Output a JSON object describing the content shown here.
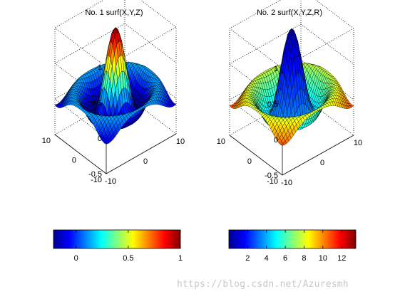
{
  "chart_data": [
    {
      "type": "surface",
      "title": "No. 1 surf(X,Y,Z)",
      "function": "Z = sin(R)/R, R = sqrt(X^2+Y^2)",
      "x_ticks": [
        "-10",
        "0",
        "10"
      ],
      "y_ticks": [
        "-10",
        "0",
        "10"
      ],
      "z_ticks": [
        "-0.5",
        "0",
        "0.5",
        "1"
      ],
      "x_range": [
        -8,
        8
      ],
      "y_range": [
        -8,
        8
      ],
      "zlim": [
        -0.5,
        1
      ],
      "color_by": "Z",
      "colormap": "jet",
      "colorbar": {
        "orientation": "horizontal",
        "ticks": [
          "0",
          "0.5",
          "1"
        ],
        "range": [
          -0.217,
          1
        ]
      }
    },
    {
      "type": "surface",
      "title": "No. 2 surf(X,Y,Z,R)",
      "function": "Z = sin(R)/R, R = sqrt(X^2+Y^2)",
      "x_ticks": [
        "-10",
        "0",
        "10"
      ],
      "y_ticks": [
        "-10",
        "0",
        "10"
      ],
      "z_ticks": [
        "-0.5",
        "0",
        "0.5",
        "1"
      ],
      "x_range": [
        -8,
        8
      ],
      "y_range": [
        -8,
        8
      ],
      "zlim": [
        -0.5,
        1
      ],
      "color_by": "R",
      "colormap": "jet",
      "colorbar": {
        "orientation": "horizontal",
        "ticks": [
          "2",
          "4",
          "6",
          "8",
          "10",
          "12"
        ],
        "range": [
          0,
          13.5
        ]
      }
    }
  ],
  "watermark": "https://blog.csdn.net/Azuresmh"
}
